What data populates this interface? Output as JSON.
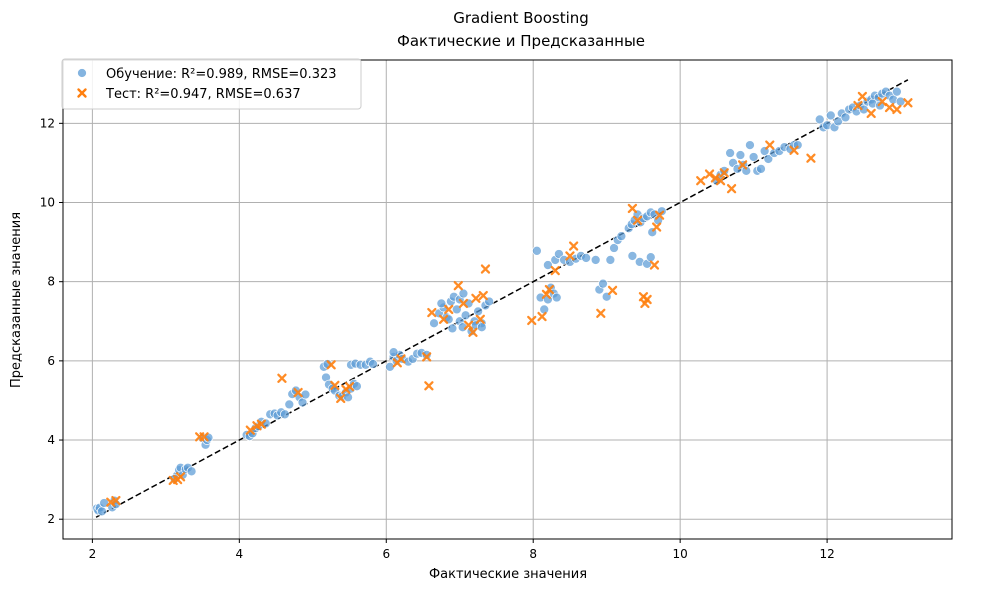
{
  "chart_data": {
    "type": "scatter",
    "title": "Gradient Boosting",
    "subtitle": "Фактические и Предсказанные",
    "xlabel": "Фактические значения",
    "ylabel": "Предсказанные значения",
    "xlim": [
      1.6,
      13.7
    ],
    "ylim": [
      1.5,
      13.6
    ],
    "xticks": [
      2,
      4,
      6,
      8,
      10,
      12
    ],
    "yticks": [
      2,
      4,
      6,
      8,
      10,
      12
    ],
    "grid": true,
    "legend_position": "top-left",
    "ideal_line": {
      "from": [
        2.05,
        2.05
      ],
      "to": [
        13.1,
        13.1
      ],
      "style": "dashed",
      "color": "#000000"
    },
    "series": [
      {
        "name": "Обучение: R²=0.989, RMSE=0.323",
        "marker": "circle",
        "color": "#5b9bd5",
        "points": [
          [
            2.06,
            2.27
          ],
          [
            2.08,
            2.22
          ],
          [
            2.1,
            2.29
          ],
          [
            2.13,
            2.2
          ],
          [
            2.16,
            2.41
          ],
          [
            2.27,
            2.3
          ],
          [
            2.3,
            2.47
          ],
          [
            2.32,
            2.38
          ],
          [
            3.15,
            3.1
          ],
          [
            3.18,
            3.24
          ],
          [
            3.2,
            3.3
          ],
          [
            3.23,
            3.12
          ],
          [
            3.27,
            3.26
          ],
          [
            3.3,
            3.3
          ],
          [
            3.35,
            3.21
          ],
          [
            3.12,
            3.02
          ],
          [
            3.5,
            4.05
          ],
          [
            3.54,
            3.88
          ],
          [
            3.56,
            4.0
          ],
          [
            3.58,
            4.06
          ],
          [
            4.1,
            4.13
          ],
          [
            4.14,
            4.1
          ],
          [
            4.18,
            4.17
          ],
          [
            4.22,
            4.3
          ],
          [
            4.26,
            4.35
          ],
          [
            4.3,
            4.46
          ],
          [
            4.36,
            4.42
          ],
          [
            4.42,
            4.65
          ],
          [
            4.48,
            4.67
          ],
          [
            4.52,
            4.62
          ],
          [
            4.57,
            4.7
          ],
          [
            4.62,
            4.65
          ],
          [
            4.68,
            4.9
          ],
          [
            4.72,
            5.16
          ],
          [
            4.77,
            5.25
          ],
          [
            4.82,
            5.08
          ],
          [
            4.86,
            4.95
          ],
          [
            4.9,
            5.15
          ],
          [
            5.15,
            5.85
          ],
          [
            5.2,
            5.92
          ],
          [
            5.18,
            5.58
          ],
          [
            5.22,
            5.4
          ],
          [
            5.27,
            5.3
          ],
          [
            5.3,
            5.25
          ],
          [
            5.36,
            5.12
          ],
          [
            5.4,
            5.1
          ],
          [
            5.45,
            5.2
          ],
          [
            5.48,
            5.08
          ],
          [
            5.52,
            5.3
          ],
          [
            5.56,
            5.42
          ],
          [
            5.6,
            5.36
          ],
          [
            5.52,
            5.9
          ],
          [
            5.58,
            5.93
          ],
          [
            5.65,
            5.9
          ],
          [
            5.72,
            5.9
          ],
          [
            5.78,
            5.98
          ],
          [
            5.82,
            5.92
          ],
          [
            6.05,
            5.85
          ],
          [
            6.1,
            6.1
          ],
          [
            6.14,
            6.0
          ],
          [
            6.18,
            6.15
          ],
          [
            6.22,
            6.05
          ],
          [
            6.3,
            5.98
          ],
          [
            6.36,
            6.05
          ],
          [
            6.42,
            6.18
          ],
          [
            6.48,
            6.2
          ],
          [
            6.55,
            6.15
          ],
          [
            6.1,
            6.22
          ],
          [
            6.65,
            6.95
          ],
          [
            6.72,
            7.2
          ],
          [
            6.78,
            7.35
          ],
          [
            6.82,
            7.1
          ],
          [
            6.88,
            7.5
          ],
          [
            6.92,
            7.62
          ],
          [
            6.96,
            7.3
          ],
          [
            7.0,
            7.0
          ],
          [
            7.04,
            6.85
          ],
          [
            7.08,
            7.15
          ],
          [
            7.12,
            7.45
          ],
          [
            7.16,
            6.75
          ],
          [
            7.2,
            7.0
          ],
          [
            7.25,
            7.25
          ],
          [
            7.3,
            6.95
          ],
          [
            7.35,
            7.4
          ],
          [
            7.4,
            7.5
          ],
          [
            7.0,
            7.55
          ],
          [
            6.9,
            6.82
          ],
          [
            7.22,
            6.9
          ],
          [
            6.85,
            7.05
          ],
          [
            7.05,
            7.7
          ],
          [
            6.75,
            7.45
          ],
          [
            7.3,
            6.85
          ],
          [
            8.05,
            8.78
          ],
          [
            8.1,
            7.6
          ],
          [
            8.15,
            7.3
          ],
          [
            8.2,
            7.55
          ],
          [
            8.24,
            7.85
          ],
          [
            8.28,
            7.7
          ],
          [
            8.32,
            7.6
          ],
          [
            8.2,
            8.42
          ],
          [
            8.3,
            8.55
          ],
          [
            8.35,
            8.7
          ],
          [
            8.42,
            8.55
          ],
          [
            8.5,
            8.5
          ],
          [
            8.58,
            8.58
          ],
          [
            8.65,
            8.65
          ],
          [
            8.72,
            8.6
          ],
          [
            8.85,
            8.55
          ],
          [
            8.9,
            7.8
          ],
          [
            8.95,
            7.95
          ],
          [
            9.0,
            7.62
          ],
          [
            9.05,
            8.55
          ],
          [
            9.1,
            8.85
          ],
          [
            9.15,
            9.05
          ],
          [
            9.2,
            9.15
          ],
          [
            9.3,
            9.35
          ],
          [
            9.34,
            9.45
          ],
          [
            9.38,
            9.55
          ],
          [
            9.42,
            9.7
          ],
          [
            9.46,
            9.5
          ],
          [
            9.5,
            9.6
          ],
          [
            9.55,
            9.65
          ],
          [
            9.6,
            9.75
          ],
          [
            9.65,
            9.7
          ],
          [
            9.7,
            9.55
          ],
          [
            9.75,
            9.78
          ],
          [
            9.35,
            8.65
          ],
          [
            9.45,
            8.5
          ],
          [
            9.55,
            8.45
          ],
          [
            9.6,
            8.62
          ],
          [
            9.62,
            9.25
          ],
          [
            10.5,
            10.55
          ],
          [
            10.55,
            10.7
          ],
          [
            10.6,
            10.8
          ],
          [
            10.68,
            11.25
          ],
          [
            10.72,
            11.0
          ],
          [
            10.78,
            10.85
          ],
          [
            10.82,
            11.2
          ],
          [
            10.86,
            10.95
          ],
          [
            10.9,
            10.8
          ],
          [
            10.95,
            11.45
          ],
          [
            11.0,
            11.15
          ],
          [
            11.05,
            10.8
          ],
          [
            11.1,
            10.85
          ],
          [
            11.15,
            11.3
          ],
          [
            11.2,
            11.1
          ],
          [
            11.28,
            11.25
          ],
          [
            11.35,
            11.3
          ],
          [
            11.42,
            11.4
          ],
          [
            11.5,
            11.35
          ],
          [
            11.55,
            11.45
          ],
          [
            11.6,
            11.45
          ],
          [
            11.9,
            12.1
          ],
          [
            11.95,
            11.9
          ],
          [
            12.0,
            11.95
          ],
          [
            12.05,
            12.2
          ],
          [
            12.1,
            11.9
          ],
          [
            12.15,
            12.05
          ],
          [
            12.2,
            12.25
          ],
          [
            12.25,
            12.15
          ],
          [
            12.3,
            12.35
          ],
          [
            12.35,
            12.4
          ],
          [
            12.4,
            12.3
          ],
          [
            12.45,
            12.45
          ],
          [
            12.5,
            12.35
          ],
          [
            12.55,
            12.55
          ],
          [
            12.6,
            12.6
          ],
          [
            12.65,
            12.7
          ],
          [
            12.7,
            12.65
          ],
          [
            12.75,
            12.75
          ],
          [
            12.8,
            12.8
          ],
          [
            12.85,
            12.7
          ],
          [
            12.9,
            12.6
          ],
          [
            12.95,
            12.8
          ],
          [
            13.0,
            12.55
          ],
          [
            12.62,
            12.5
          ],
          [
            12.72,
            12.45
          ]
        ]
      },
      {
        "name": "Тест: R²=0.947, RMSE=0.637",
        "marker": "x",
        "color": "#ff7f0e",
        "points": [
          [
            2.25,
            2.43
          ],
          [
            2.32,
            2.47
          ],
          [
            3.1,
            2.98
          ],
          [
            3.16,
            3.0
          ],
          [
            3.2,
            3.07
          ],
          [
            3.46,
            4.08
          ],
          [
            3.52,
            4.08
          ],
          [
            4.15,
            4.25
          ],
          [
            4.24,
            4.36
          ],
          [
            4.3,
            4.4
          ],
          [
            4.58,
            5.56
          ],
          [
            4.8,
            5.2
          ],
          [
            5.25,
            5.9
          ],
          [
            5.3,
            5.38
          ],
          [
            5.38,
            5.05
          ],
          [
            5.45,
            5.28
          ],
          [
            5.5,
            5.35
          ],
          [
            6.15,
            5.95
          ],
          [
            6.2,
            6.05
          ],
          [
            6.55,
            6.1
          ],
          [
            6.58,
            5.37
          ],
          [
            6.62,
            7.22
          ],
          [
            6.78,
            7.05
          ],
          [
            6.85,
            7.3
          ],
          [
            6.98,
            7.9
          ],
          [
            7.05,
            7.45
          ],
          [
            7.12,
            6.9
          ],
          [
            7.18,
            6.72
          ],
          [
            7.28,
            7.05
          ],
          [
            7.32,
            7.65
          ],
          [
            7.35,
            8.32
          ],
          [
            7.22,
            7.58
          ],
          [
            7.98,
            7.02
          ],
          [
            8.12,
            7.12
          ],
          [
            8.18,
            7.68
          ],
          [
            8.22,
            7.8
          ],
          [
            8.3,
            8.28
          ],
          [
            8.5,
            8.65
          ],
          [
            8.55,
            8.9
          ],
          [
            8.92,
            7.2
          ],
          [
            9.08,
            7.78
          ],
          [
            9.35,
            9.85
          ],
          [
            9.42,
            9.55
          ],
          [
            9.5,
            7.62
          ],
          [
            9.52,
            7.45
          ],
          [
            9.55,
            7.55
          ],
          [
            9.65,
            8.42
          ],
          [
            9.68,
            9.38
          ],
          [
            9.72,
            9.68
          ],
          [
            10.28,
            10.55
          ],
          [
            10.4,
            10.72
          ],
          [
            10.48,
            10.62
          ],
          [
            10.55,
            10.55
          ],
          [
            10.6,
            10.75
          ],
          [
            10.7,
            10.35
          ],
          [
            10.85,
            10.95
          ],
          [
            11.22,
            11.45
          ],
          [
            11.55,
            11.32
          ],
          [
            11.78,
            11.12
          ],
          [
            12.42,
            12.45
          ],
          [
            12.48,
            12.68
          ],
          [
            12.6,
            12.25
          ],
          [
            12.75,
            12.55
          ],
          [
            12.85,
            12.4
          ],
          [
            12.95,
            12.35
          ],
          [
            13.1,
            12.52
          ]
        ]
      }
    ]
  }
}
